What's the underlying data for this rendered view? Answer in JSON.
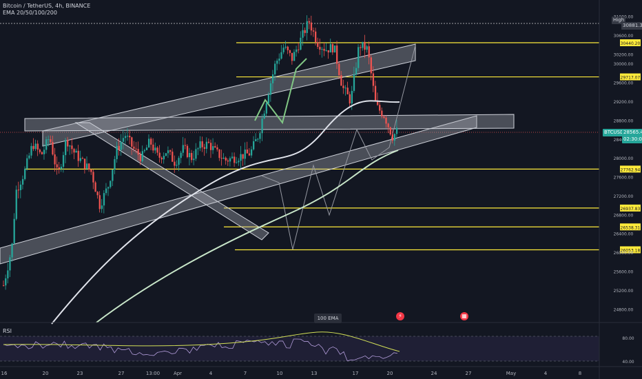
{
  "header": {
    "symbol_line": "Bitcoin / TetherUS, 4h, BINANCE",
    "indicator_line": "EMA 20/50/100/200"
  },
  "colors": {
    "background": "#131722",
    "up": "#26a69a",
    "down": "#ef5350",
    "level": "#ffeb3b",
    "channel": "#b2b5be",
    "ema_white": "#e0e3eb",
    "ema_green": "#c8e6c9",
    "rsi": "#b39ddb",
    "rsi_ma": "#d4e157",
    "price_tag": "#26a69a"
  },
  "price_axis": {
    "ticks": [
      "31200.00",
      "31000.00",
      "30600.00",
      "30200.00",
      "30000.00",
      "29600.00",
      "29200.00",
      "28800.00",
      "28400.00",
      "28000.00",
      "27600.00",
      "27200.00",
      "26800.00",
      "26400.00",
      "26000.00",
      "25600.00",
      "25200.00",
      "24800.00"
    ],
    "tick_values": [
      31200,
      31000,
      30600,
      30200,
      30000,
      29600,
      29200,
      28800,
      28400,
      28000,
      27600,
      27200,
      26800,
      26400,
      26000,
      25600,
      25200,
      24800
    ],
    "high_label": "High",
    "high_value": "30881.35",
    "current_symbol": "BTCUSDT",
    "current_price": "28565.46",
    "countdown": "02:30:00"
  },
  "time_axis": {
    "labels": [
      "16",
      "20",
      "23",
      "27",
      "13:00",
      "Apr",
      "4",
      "7",
      "10",
      "13",
      "17",
      "20",
      "24",
      "27",
      "May",
      "4",
      "8"
    ]
  },
  "ema_tag": "100 EMA",
  "rsi": {
    "label": "RSI",
    "ticks": [
      "80.00",
      "40.00"
    ]
  },
  "event_icons": [
    "lightning-icon",
    "calendar-flag-icon"
  ],
  "chart_data": {
    "type": "candlestick",
    "title": "Bitcoin / TetherUS, 4h, BINANCE",
    "ylim": [
      24600,
      31200
    ],
    "levels": [
      {
        "label": "30440.20",
        "value": 30440.2
      },
      {
        "label": "29717.07",
        "value": 29717.07
      },
      {
        "label": "27762.94",
        "value": 27762.94
      },
      {
        "label": "26937.83",
        "value": 26937.83
      },
      {
        "label": "26538.31",
        "value": 26538.31
      },
      {
        "label": "26053.18",
        "value": 26053.18
      }
    ],
    "series": [
      {
        "name": "BTCUSDT",
        "approx_path": [
          [
            0,
            25300
          ],
          [
            0.02,
            26100
          ],
          [
            0.03,
            27300
          ],
          [
            0.05,
            27700
          ],
          [
            0.07,
            28300
          ],
          [
            0.09,
            28050
          ],
          [
            0.11,
            28450
          ],
          [
            0.13,
            27600
          ],
          [
            0.15,
            28400
          ],
          [
            0.17,
            28100
          ],
          [
            0.19,
            27900
          ],
          [
            0.21,
            27700
          ],
          [
            0.23,
            27000
          ],
          [
            0.25,
            27400
          ],
          [
            0.27,
            28150
          ],
          [
            0.29,
            28500
          ],
          [
            0.31,
            28200
          ],
          [
            0.33,
            28000
          ],
          [
            0.35,
            28350
          ],
          [
            0.37,
            28000
          ],
          [
            0.39,
            28150
          ],
          [
            0.41,
            27900
          ],
          [
            0.43,
            28200
          ],
          [
            0.45,
            28000
          ],
          [
            0.47,
            28250
          ],
          [
            0.49,
            28300
          ],
          [
            0.51,
            28100
          ],
          [
            0.53,
            27950
          ],
          [
            0.55,
            28000
          ],
          [
            0.57,
            28050
          ],
          [
            0.59,
            28100
          ],
          [
            0.61,
            28500
          ],
          [
            0.63,
            29300
          ],
          [
            0.65,
            30000
          ],
          [
            0.67,
            30350
          ],
          [
            0.69,
            30100
          ],
          [
            0.71,
            30500
          ],
          [
            0.73,
            30900
          ],
          [
            0.75,
            30450
          ],
          [
            0.77,
            30300
          ],
          [
            0.79,
            30350
          ],
          [
            0.81,
            29500
          ],
          [
            0.83,
            29200
          ],
          [
            0.85,
            30400
          ],
          [
            0.87,
            30300
          ],
          [
            0.89,
            29100
          ],
          [
            0.91,
            28900
          ],
          [
            0.93,
            28450
          ],
          [
            0.94,
            28565
          ]
        ]
      }
    ]
  }
}
